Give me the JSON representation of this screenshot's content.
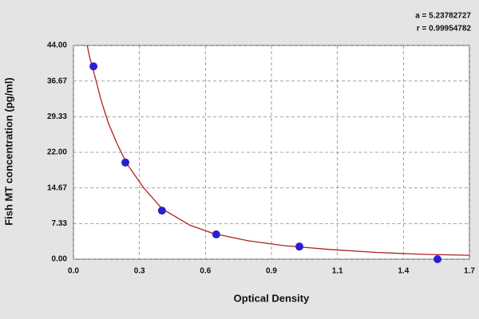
{
  "chart_data": {
    "type": "scatter",
    "x_label": "Optical Density",
    "y_label": "Fish MT concentration (pg/ml)",
    "annotations": [
      "a = 5.23782727",
      "r = 0.99954782"
    ],
    "x": [
      0.086,
      0.223,
      0.38,
      0.613,
      0.97,
      1.563
    ],
    "series": [
      {
        "color": "#2a1fd0",
        "values": [
          39.7,
          19.9,
          10.0,
          5.1,
          2.6,
          0.0
        ]
      }
    ],
    "fit": {
      "color": "#b02020",
      "x": [
        0.055,
        0.07,
        0.09,
        0.12,
        0.15,
        0.19,
        0.23,
        0.3,
        0.38,
        0.5,
        0.6,
        0.75,
        0.9,
        1.1,
        1.3,
        1.5,
        1.7
      ],
      "values": [
        45.0,
        41.5,
        38.0,
        32.5,
        28.0,
        23.5,
        19.6,
        14.8,
        10.4,
        7.0,
        5.3,
        3.8,
        2.8,
        2.0,
        1.4,
        1.0,
        0.8
      ]
    },
    "xlim": [
      0,
      1.7
    ],
    "xticks": [
      {
        "value": 0,
        "label": "0.0"
      },
      {
        "value": 0.2833,
        "label": "0.3"
      },
      {
        "value": 0.5667,
        "label": "0.6"
      },
      {
        "value": 0.85,
        "label": "0.9"
      },
      {
        "value": 1.1333,
        "label": "1.1"
      },
      {
        "value": 1.4167,
        "label": "1.4"
      },
      1.7
    ],
    "ylim": [
      0,
      44
    ],
    "yticks": [
      {
        "value": 0,
        "label": "0.00"
      },
      7.33,
      14.67,
      {
        "value": 22,
        "label": "22.00"
      },
      29.33,
      36.67,
      {
        "value": 44,
        "label": "44.00"
      }
    ],
    "grid": true
  }
}
